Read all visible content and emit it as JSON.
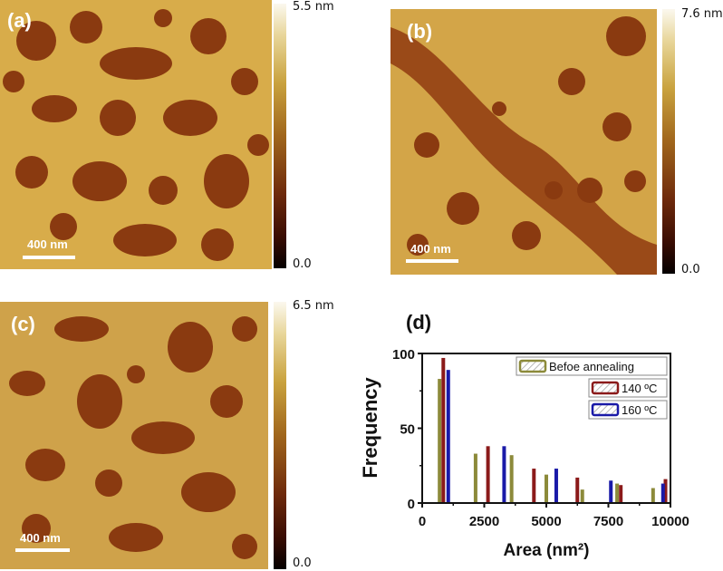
{
  "panels": {
    "a": {
      "label": "(a)",
      "scale_bar": "400 nm",
      "colorbar_max": "5.5 nm",
      "colorbar_min": "0.0"
    },
    "b": {
      "label": "(b)",
      "scale_bar": "400 nm",
      "colorbar_max": "7.6 nm",
      "colorbar_min": "0.0"
    },
    "c": {
      "label": "(c)",
      "scale_bar": "400 nm",
      "colorbar_max": "6.5 nm",
      "colorbar_min": "0.0"
    },
    "d": {
      "label": "(d)"
    }
  },
  "chart_data": {
    "type": "bar",
    "title": "(d)",
    "xlabel": "Area (nm²)",
    "ylabel": "Frequency",
    "xlim": [
      0,
      10000
    ],
    "ylim": [
      0,
      100
    ],
    "xticks": [
      "0",
      "2500",
      "5000",
      "7500",
      "10000"
    ],
    "yticks": [
      "0",
      "50",
      "100"
    ],
    "grid": false,
    "legend_position": "upper right",
    "series": [
      {
        "name": "Befoe annealing",
        "color": "#8c8a3a",
        "x": [
          700,
          2150,
          3600,
          5000,
          6450,
          7850,
          9300
        ],
        "values": [
          83,
          33,
          32,
          19,
          9,
          13,
          10
        ]
      },
      {
        "name": "140 ºC",
        "color": "#8b1a1a",
        "x": [
          850,
          2650,
          4500,
          6250,
          8000,
          9800
        ],
        "values": [
          97,
          38,
          23,
          17,
          12,
          16
        ]
      },
      {
        "name": "160 ºC",
        "color": "#1a1aa8",
        "x": [
          1050,
          3300,
          5400,
          7600,
          9700
        ],
        "values": [
          89,
          38,
          23,
          15,
          13
        ]
      }
    ]
  }
}
